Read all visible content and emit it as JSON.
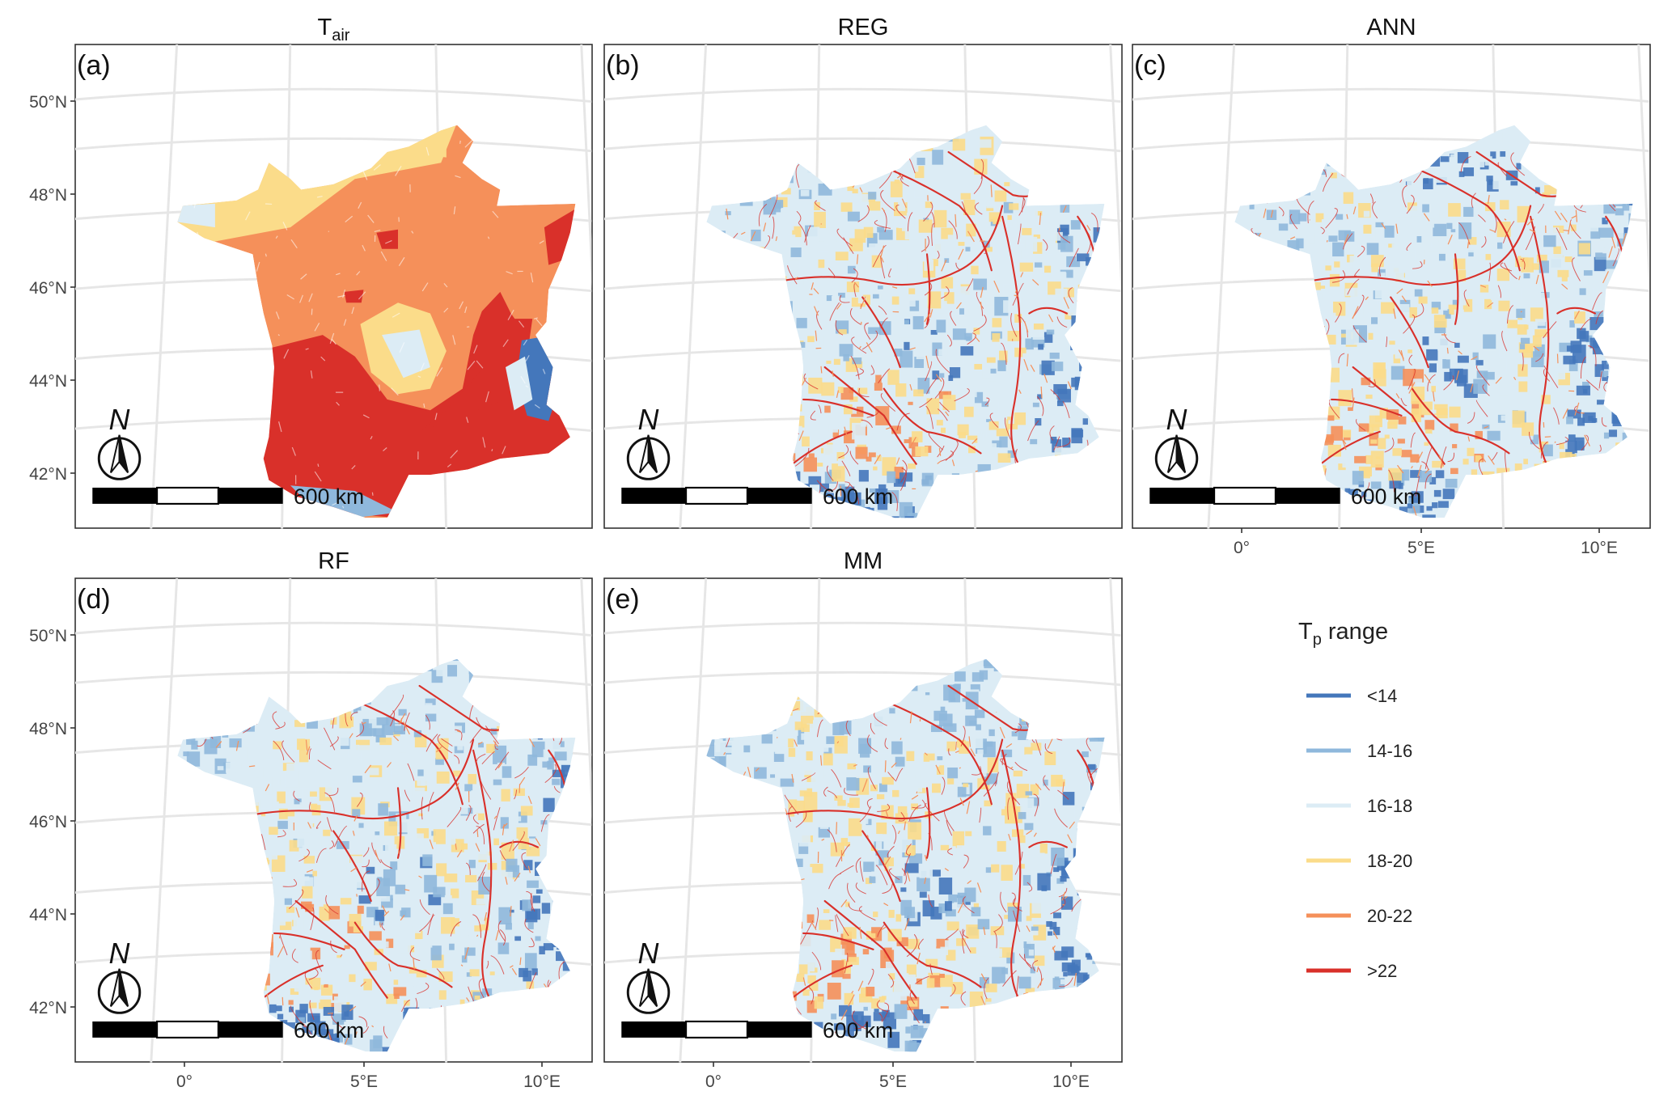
{
  "figure": {
    "panels": [
      {
        "id": "a",
        "tag": "(a)",
        "title_main": "T",
        "title_sub": "air"
      },
      {
        "id": "b",
        "tag": "(b)",
        "title_main": "REG",
        "title_sub": ""
      },
      {
        "id": "c",
        "tag": "(c)",
        "title_main": "ANN",
        "title_sub": ""
      },
      {
        "id": "d",
        "tag": "(d)",
        "title_main": "RF",
        "title_sub": ""
      },
      {
        "id": "e",
        "tag": "(e)",
        "title_main": "MM",
        "title_sub": ""
      }
    ],
    "lat_labels": [
      "50°N",
      "48°N",
      "46°N",
      "44°N",
      "42°N"
    ],
    "lon_labels": [
      "0°",
      "5°E",
      "10°E"
    ],
    "scalebar_label": "600 km",
    "north_label": "N",
    "legend": {
      "title_main": "T",
      "title_sub": "p",
      "title_rest": " range",
      "items": [
        {
          "label": "<14",
          "color": "#4477bb"
        },
        {
          "label": "14-16",
          "color": "#8fb8dc"
        },
        {
          "label": "16-18",
          "color": "#dcecf5"
        },
        {
          "label": "18-20",
          "color": "#fbdc8a"
        },
        {
          "label": "20-22",
          "color": "#f5905a"
        },
        {
          "label": ">22",
          "color": "#d9302a"
        }
      ]
    }
  }
}
